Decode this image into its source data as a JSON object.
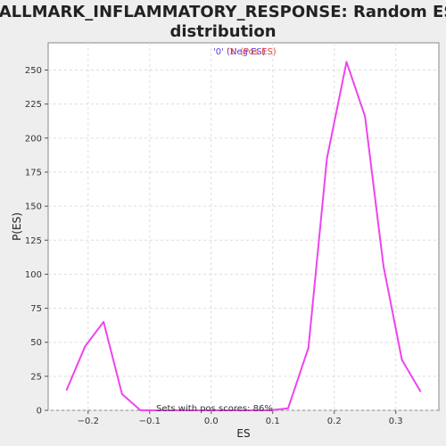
{
  "chart_data": {
    "type": "line",
    "title_lines": [
      "HALLMARK_INFLAMMATORY_RESPONSE: Random ES",
      "distribution"
    ],
    "xlabel": "ES",
    "ylabel": "P(ES)",
    "xlim": [
      -0.265,
      0.37
    ],
    "ylim": [
      0,
      270
    ],
    "xticks": [
      -0.2,
      -0.1,
      0.0,
      0.1,
      0.2,
      0.3
    ],
    "xtick_labels": [
      "−0.2",
      "−0.1",
      "0.0",
      "0.1",
      "0.2",
      "0.3"
    ],
    "yticks": [
      0,
      25,
      50,
      75,
      100,
      125,
      150,
      175,
      200,
      225,
      250
    ],
    "ytick_labels": [
      "0",
      "25",
      "50",
      "75",
      "100",
      "125",
      "150",
      "175",
      "200",
      "225",
      "250"
    ],
    "grid": true,
    "legend": {
      "placement": "top-center",
      "entries": [
        {
          "label": "'0' (Neg ES)",
          "color": "#5a3ddb"
        },
        {
          "label": "'1' (Pos ES)",
          "color": "#e8413a"
        }
      ]
    },
    "annotation": "Sets with pos scores: 86%",
    "line_color": "#ee44ee",
    "series": [
      {
        "x": [
          -0.235,
          -0.205,
          -0.175,
          -0.145,
          -0.115,
          -0.085,
          -0.055,
          -0.025,
          0.005,
          0.035,
          0.065,
          0.095,
          0.125,
          0.158,
          0.188,
          0.22,
          0.25,
          0.28,
          0.31,
          0.34
        ],
        "values": [
          15,
          47,
          65,
          12,
          0,
          0,
          0,
          0,
          0,
          0,
          0,
          0,
          1.5,
          46,
          185,
          256,
          216,
          106,
          37,
          14
        ]
      }
    ]
  }
}
